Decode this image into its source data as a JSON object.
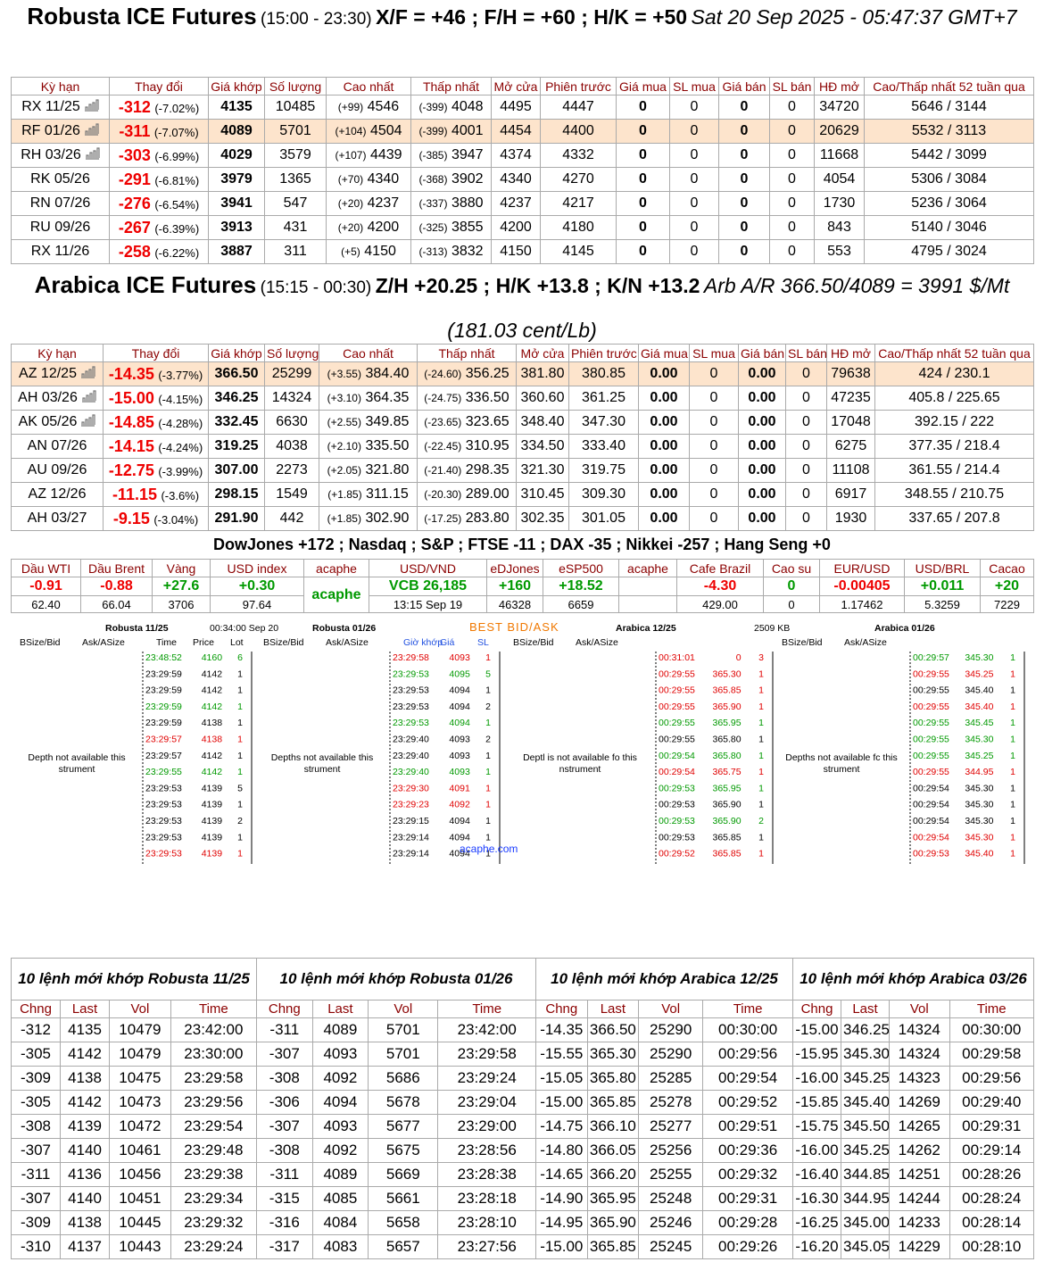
{
  "robusta": {
    "heading": {
      "title": "Robusta ICE Futures",
      "hours": "(15:00 - 23:30)",
      "spreads": "X/F = +46 ; F/H = +60 ; H/K = +50",
      "time": "Sat 20 Sep 2025 - 05:47:37 GMT+7"
    },
    "headers": [
      "Kỳ hạn",
      "Thay đổi",
      "Giá khớp",
      "Số lượng",
      "Cao nhất",
      "Thấp nhất",
      "Mở cửa",
      "Phiên trước",
      "Giá mua",
      "SL mua",
      "Giá bán",
      "SL bán",
      "HĐ mở",
      "Cao/Thấp nhất 52 tuần qua"
    ],
    "rows": [
      [
        "RX 11/25",
        "-312",
        "(-7.02%)",
        "4135",
        "10485",
        "(+99)",
        "4546",
        "(-399)",
        "4048",
        "4495",
        "4447",
        "0",
        "0",
        "0",
        "0",
        "34720",
        "5646 / 3144"
      ],
      [
        "RF 01/26",
        "-311",
        "(-7.07%)",
        "4089",
        "5701",
        "(+104)",
        "4504",
        "(-399)",
        "4001",
        "4454",
        "4400",
        "0",
        "0",
        "0",
        "0",
        "20629",
        "5532 / 3113"
      ],
      [
        "RH 03/26",
        "-303",
        "(-6.99%)",
        "4029",
        "3579",
        "(+107)",
        "4439",
        "(-385)",
        "3947",
        "4374",
        "4332",
        "0",
        "0",
        "0",
        "0",
        "11668",
        "5442 / 3099"
      ],
      [
        "RK 05/26",
        "-291",
        "(-6.81%)",
        "3979",
        "1365",
        "(+70)",
        "4340",
        "(-368)",
        "3902",
        "4340",
        "4270",
        "0",
        "0",
        "0",
        "0",
        "4054",
        "5306 / 3084"
      ],
      [
        "RN 07/26",
        "-276",
        "(-6.54%)",
        "3941",
        "547",
        "(+20)",
        "4237",
        "(-337)",
        "3880",
        "4237",
        "4217",
        "0",
        "0",
        "0",
        "0",
        "1730",
        "5236 / 3064"
      ],
      [
        "RU 09/26",
        "-267",
        "(-6.39%)",
        "3913",
        "431",
        "(+20)",
        "4200",
        "(-325)",
        "3855",
        "4200",
        "4180",
        "0",
        "0",
        "0",
        "0",
        "843",
        "5140 / 3046"
      ],
      [
        "RX 11/26",
        "-258",
        "(-6.22%)",
        "3887",
        "311",
        "(+5)",
        "4150",
        "(-313)",
        "3832",
        "4150",
        "4145",
        "0",
        "0",
        "0",
        "0",
        "553",
        "4795 / 3024"
      ]
    ]
  },
  "arabica": {
    "heading": {
      "title": "Arabica ICE Futures",
      "hours": "(15:15 - 00:30)",
      "spreads": "Z/H +20.25 ; H/K +13.8 ; K/N +13.2",
      "arb": "Arb A/R 366.50/4089 = 3991 $/Mt (181.03 cent/Lb)"
    },
    "headers": [
      "Kỳ hạn",
      "Thay đổi",
      "Giá khớp",
      "Số lượng",
      "Cao nhất",
      "Thấp nhất",
      "Mở cửa",
      "Phiên trước",
      "Giá mua",
      "SL mua",
      "Giá bán",
      "SL bán",
      "HĐ mở",
      "Cao/Thấp nhất 52 tuần qua"
    ],
    "rows": [
      [
        "AZ 12/25",
        "-14.35",
        "(-3.77%)",
        "366.50",
        "25299",
        "(+3.55)",
        "384.40",
        "(-24.60)",
        "356.25",
        "381.80",
        "380.85",
        "0.00",
        "0",
        "0.00",
        "0",
        "79638",
        "424 / 230.1"
      ],
      [
        "AH 03/26",
        "-15.00",
        "(-4.15%)",
        "346.25",
        "14324",
        "(+3.10)",
        "364.35",
        "(-24.75)",
        "336.50",
        "360.60",
        "361.25",
        "0.00",
        "0",
        "0.00",
        "0",
        "47235",
        "405.8 / 225.65"
      ],
      [
        "AK 05/26",
        "-14.85",
        "(-4.28%)",
        "332.45",
        "6630",
        "(+2.55)",
        "349.85",
        "(-23.65)",
        "323.65",
        "348.40",
        "347.30",
        "0.00",
        "0",
        "0.00",
        "0",
        "17048",
        "392.15 / 222"
      ],
      [
        "AN 07/26",
        "-14.15",
        "(-4.24%)",
        "319.25",
        "4038",
        "(+2.10)",
        "335.50",
        "(-22.45)",
        "310.95",
        "334.50",
        "333.40",
        "0.00",
        "0",
        "0.00",
        "0",
        "6275",
        "377.35 / 218.4"
      ],
      [
        "AU 09/26",
        "-12.75",
        "(-3.99%)",
        "307.00",
        "2273",
        "(+2.05)",
        "321.80",
        "(-21.40)",
        "298.35",
        "321.30",
        "319.75",
        "0.00",
        "0",
        "0.00",
        "0",
        "11108",
        "361.55 / 214.4"
      ],
      [
        "AZ 12/26",
        "-11.15",
        "(-3.6%)",
        "298.15",
        "1549",
        "(+1.85)",
        "311.15",
        "(-20.30)",
        "289.00",
        "310.45",
        "309.30",
        "0.00",
        "0",
        "0.00",
        "0",
        "6917",
        "348.55 / 210.75"
      ],
      [
        "AH 03/27",
        "-9.15",
        "(-3.04%)",
        "291.90",
        "442",
        "(+1.85)",
        "302.90",
        "(-17.25)",
        "283.80",
        "302.35",
        "301.05",
        "0.00",
        "0",
        "0.00",
        "0",
        "1930",
        "337.65 / 207.8"
      ]
    ]
  },
  "indices": "DowJones +172 ; Nasdaq ; S&P ; FTSE -11 ; DAX -35 ; Nikkei -257 ; Hang Seng +0",
  "markets": {
    "headers": [
      "Dầu WTI",
      "Dầu Brent",
      "Vàng",
      "USD index",
      "acaphe",
      "USD/VND",
      "eDJones",
      "eSP500",
      "acaphe",
      "Cafe Brazil",
      "Cao su",
      "EUR/USD",
      "USD/BRL",
      "Cacao"
    ],
    "changes": [
      "-0.91",
      "-0.88",
      "+27.6",
      "+0.30",
      "acaphe",
      "VCB 26,185",
      "+160",
      "+18.52",
      null,
      "-4.30",
      "0",
      "-0.00405",
      "+0.011",
      "+20"
    ],
    "values": [
      "62.40",
      "66.04",
      "3706",
      "97.64",
      null,
      "13:15 Sep 19",
      "46328",
      "6659",
      null,
      "429.00",
      "0",
      "1.17462",
      "5.3259",
      "7229"
    ]
  },
  "best_bid_ask": {
    "header": {
      "robusta_1": "Robusta 11/25",
      "clock": "00:34:00 Sep 20",
      "robusta_2": "Robusta 01/26",
      "title": "BEST BID/ASK",
      "arabica_1": "Arabica 12/25",
      "size": "2509 KB",
      "arabica_2": "Arabica 01/26"
    },
    "watermark": "acaphe.com",
    "panels": [
      {
        "columns": [
          "BSize/Bid",
          "Ask/ASize",
          "Time",
          "Price",
          "Lot"
        ],
        "depth": [
          "Depth not available  this",
          "strument"
        ],
        "trades": [
          [
            "23:48:52",
            "4160",
            "6",
            "#009900"
          ],
          [
            "23:29:59",
            "4142",
            "1",
            "#000000"
          ],
          [
            "23:29:59",
            "4142",
            "1",
            "#000000"
          ],
          [
            "23:29:59",
            "4142",
            "1",
            "#009900"
          ],
          [
            "23:29:59",
            "4138",
            "1",
            "#000000"
          ],
          [
            "23:29:57",
            "4138",
            "1",
            "#e00000"
          ],
          [
            "23:29:57",
            "4142",
            "1",
            "#000000"
          ],
          [
            "23:29:55",
            "4142",
            "1",
            "#009900"
          ],
          [
            "23:29:53",
            "4139",
            "5",
            "#000000"
          ],
          [
            "23:29:53",
            "4139",
            "1",
            "#000000"
          ],
          [
            "23:29:53",
            "4139",
            "2",
            "#000000"
          ],
          [
            "23:29:53",
            "4139",
            "1",
            "#000000"
          ],
          [
            "23:29:53",
            "4139",
            "1",
            "#e00000"
          ]
        ]
      },
      {
        "columns": [
          "BSize/Bid",
          "Ask/ASize",
          "Giờ khớp",
          "Giá",
          "SL"
        ],
        "depth": [
          "Depths not available  this",
          "strument"
        ],
        "trades": [
          [
            "23:29:58",
            "4093",
            "1",
            "#e00000"
          ],
          [
            "23:29:53",
            "4095",
            "5",
            "#009900"
          ],
          [
            "23:29:53",
            "4094",
            "1",
            "#000000"
          ],
          [
            "23:29:53",
            "4094",
            "2",
            "#000000"
          ],
          [
            "23:29:53",
            "4094",
            "1",
            "#009900"
          ],
          [
            "23:29:40",
            "4093",
            "2",
            "#000000"
          ],
          [
            "23:29:40",
            "4093",
            "1",
            "#000000"
          ],
          [
            "23:29:40",
            "4093",
            "1",
            "#009900"
          ],
          [
            "23:29:30",
            "4091",
            "1",
            "#e00000"
          ],
          [
            "23:29:23",
            "4092",
            "1",
            "#e00000"
          ],
          [
            "23:29:15",
            "4094",
            "1",
            "#000000"
          ],
          [
            "23:29:14",
            "4094",
            "1",
            "#000000"
          ],
          [
            "23:29:14",
            "4094",
            "1",
            "#000000"
          ]
        ]
      },
      {
        "columns": [
          "BSize/Bid",
          "Ask/ASize"
        ],
        "depth": [
          "Deptl is not available fo    this",
          "nstrument"
        ],
        "trades": [
          [
            "00:31:01",
            "0",
            "3",
            "#e00000"
          ],
          [
            "00:29:55",
            "365.30",
            "1",
            "#e00000"
          ],
          [
            "00:29:55",
            "365.85",
            "1",
            "#e00000"
          ],
          [
            "00:29:55",
            "365.90",
            "1",
            "#e00000"
          ],
          [
            "00:29:55",
            "365.95",
            "1",
            "#009900"
          ],
          [
            "00:29:55",
            "365.80",
            "1",
            "#000000"
          ],
          [
            "00:29:54",
            "365.80",
            "1",
            "#009900"
          ],
          [
            "00:29:54",
            "365.75",
            "1",
            "#e00000"
          ],
          [
            "00:29:53",
            "365.95",
            "1",
            "#009900"
          ],
          [
            "00:29:53",
            "365.90",
            "1",
            "#000000"
          ],
          [
            "00:29:53",
            "365.90",
            "2",
            "#009900"
          ],
          [
            "00:29:53",
            "365.85",
            "1",
            "#000000"
          ],
          [
            "00:29:52",
            "365.85",
            "1",
            "#e00000"
          ]
        ]
      },
      {
        "columns": [
          "BSize/Bid",
          "Ask/ASize"
        ],
        "depth": [
          "Depths not available fc this",
          "strument"
        ],
        "trades": [
          [
            "00:29:57",
            "345.30",
            "1",
            "#009900"
          ],
          [
            "00:29:55",
            "345.25",
            "1",
            "#e00000"
          ],
          [
            "00:29:55",
            "345.40",
            "1",
            "#000000"
          ],
          [
            "00:29:55",
            "345.40",
            "1",
            "#e00000"
          ],
          [
            "00:29:55",
            "345.45",
            "1",
            "#009900"
          ],
          [
            "00:29:55",
            "345.30",
            "1",
            "#009900"
          ],
          [
            "00:29:55",
            "345.25",
            "1",
            "#009900"
          ],
          [
            "00:29:55",
            "344.95",
            "1",
            "#e00000"
          ],
          [
            "00:29:54",
            "345.30",
            "1",
            "#000000"
          ],
          [
            "00:29:54",
            "345.30",
            "1",
            "#000000"
          ],
          [
            "00:29:54",
            "345.30",
            "1",
            "#000000"
          ],
          [
            "00:29:54",
            "345.30",
            "1",
            "#e00000"
          ],
          [
            "00:29:53",
            "345.40",
            "1",
            "#e00000"
          ]
        ]
      }
    ]
  },
  "last_trades": [
    {
      "title": "10 lệnh mới khớp Robusta 11/25",
      "headers": [
        "Chng",
        "Last",
        "Vol",
        "Time"
      ],
      "rows": [
        [
          "-312",
          "4135",
          "10479",
          "23:42:00"
        ],
        [
          "-305",
          "4142",
          "10479",
          "23:30:00"
        ],
        [
          "-309",
          "4138",
          "10475",
          "23:29:58"
        ],
        [
          "-305",
          "4142",
          "10473",
          "23:29:56"
        ],
        [
          "-308",
          "4139",
          "10472",
          "23:29:54"
        ],
        [
          "-307",
          "4140",
          "10461",
          "23:29:48"
        ],
        [
          "-311",
          "4136",
          "10456",
          "23:29:38"
        ],
        [
          "-307",
          "4140",
          "10451",
          "23:29:34"
        ],
        [
          "-309",
          "4138",
          "10445",
          "23:29:32"
        ],
        [
          "-310",
          "4137",
          "10443",
          "23:29:24"
        ]
      ]
    },
    {
      "title": "10 lệnh mới khớp Robusta 01/26",
      "headers": [
        "Chng",
        "Last",
        "Vol",
        "Time"
      ],
      "rows": [
        [
          "-311",
          "4089",
          "5701",
          "23:42:00"
        ],
        [
          "-307",
          "4093",
          "5701",
          "23:29:58"
        ],
        [
          "-308",
          "4092",
          "5686",
          "23:29:24"
        ],
        [
          "-306",
          "4094",
          "5678",
          "23:29:04"
        ],
        [
          "-307",
          "4093",
          "5677",
          "23:29:00"
        ],
        [
          "-308",
          "4092",
          "5675",
          "23:28:56"
        ],
        [
          "-311",
          "4089",
          "5669",
          "23:28:38"
        ],
        [
          "-315",
          "4085",
          "5661",
          "23:28:18"
        ],
        [
          "-316",
          "4084",
          "5658",
          "23:28:10"
        ],
        [
          "-317",
          "4083",
          "5657",
          "23:27:56"
        ]
      ]
    },
    {
      "title": "10 lệnh mới khớp Arabica 12/25",
      "headers": [
        "Chng",
        "Last",
        "Vol",
        "Time"
      ],
      "rows": [
        [
          "-14.35",
          "366.50",
          "25290",
          "00:30:00"
        ],
        [
          "-15.55",
          "365.30",
          "25290",
          "00:29:56"
        ],
        [
          "-15.05",
          "365.80",
          "25285",
          "00:29:54"
        ],
        [
          "-15.00",
          "365.85",
          "25278",
          "00:29:52"
        ],
        [
          "-14.75",
          "366.10",
          "25277",
          "00:29:51"
        ],
        [
          "-14.80",
          "366.05",
          "25256",
          "00:29:36"
        ],
        [
          "-14.65",
          "366.20",
          "25255",
          "00:29:32"
        ],
        [
          "-14.90",
          "365.95",
          "25248",
          "00:29:31"
        ],
        [
          "-14.95",
          "365.90",
          "25246",
          "00:29:28"
        ],
        [
          "-15.00",
          "365.85",
          "25245",
          "00:29:26"
        ]
      ]
    },
    {
      "title": "10 lệnh mới khớp Arabica 03/26",
      "headers": [
        "Chng",
        "Last",
        "Vol",
        "Time"
      ],
      "rows": [
        [
          "-15.00",
          "346.25",
          "14324",
          "00:30:00"
        ],
        [
          "-15.95",
          "345.30",
          "14324",
          "00:29:58"
        ],
        [
          "-16.00",
          "345.25",
          "14323",
          "00:29:56"
        ],
        [
          "-15.85",
          "345.40",
          "14269",
          "00:29:40"
        ],
        [
          "-15.75",
          "345.50",
          "14265",
          "00:29:31"
        ],
        [
          "-16.00",
          "345.25",
          "14262",
          "00:29:14"
        ],
        [
          "-16.40",
          "344.85",
          "14251",
          "00:28:26"
        ],
        [
          "-16.30",
          "344.95",
          "14244",
          "00:28:24"
        ],
        [
          "-16.25",
          "345.00",
          "14233",
          "00:28:14"
        ],
        [
          "-16.20",
          "345.05",
          "14229",
          "00:28:10"
        ]
      ]
    }
  ]
}
